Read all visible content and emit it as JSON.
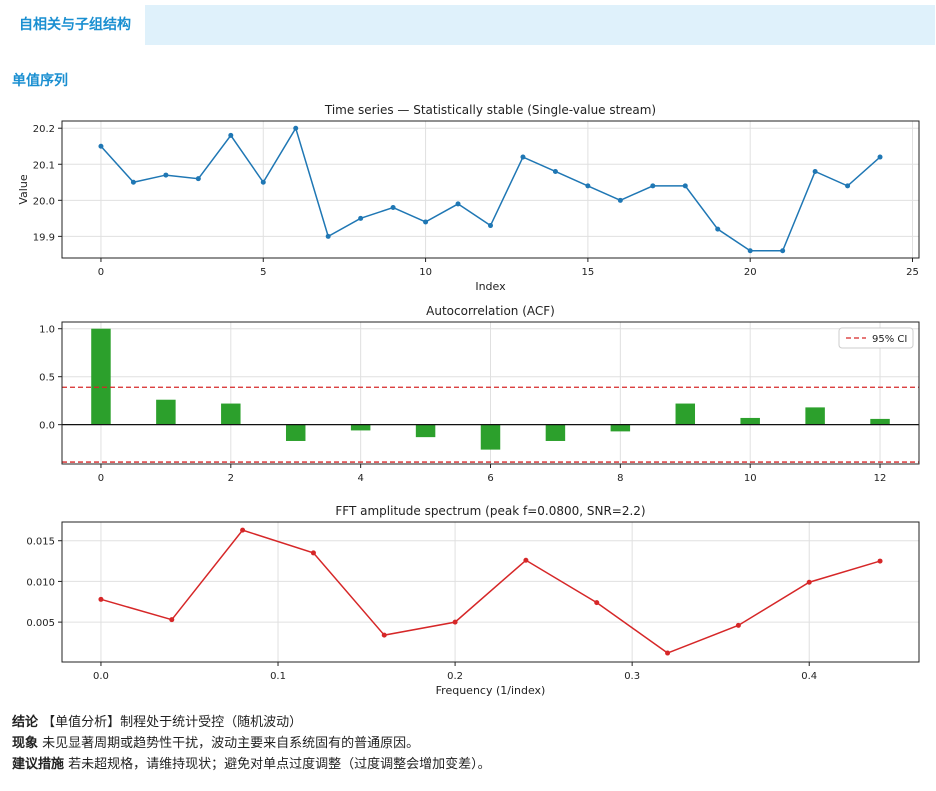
{
  "tab": {
    "label": "自相关与子组结构"
  },
  "section": {
    "title": "单值序列"
  },
  "colors": {
    "series": "#1f77b4",
    "acf_bar": "#2ca02c",
    "ci": "#d62728",
    "fft": "#d62728",
    "accent": "#1a8fd1"
  },
  "chart_data": [
    {
      "type": "line",
      "title": "Time series — Statistically stable (Single-value stream)",
      "xlabel": "Index",
      "ylabel": "Value",
      "xlim": [
        -1.2,
        25.2
      ],
      "ylim": [
        19.84,
        20.22
      ],
      "xticks": [
        0,
        5,
        10,
        15,
        20,
        25
      ],
      "yticks": [
        19.9,
        20.0,
        20.1,
        20.2
      ],
      "ytick_labels": [
        "19.9",
        "20.0",
        "20.1",
        "20.2"
      ],
      "grid": true,
      "x": [
        0,
        1,
        2,
        3,
        4,
        5,
        6,
        7,
        8,
        9,
        10,
        11,
        12,
        13,
        14,
        15,
        16,
        17,
        18,
        19,
        20,
        21,
        22,
        23,
        24
      ],
      "y": [
        20.15,
        20.05,
        20.07,
        20.06,
        20.18,
        20.05,
        20.2,
        19.9,
        19.95,
        19.98,
        19.94,
        19.99,
        19.93,
        20.12,
        20.08,
        20.04,
        20.0,
        20.04,
        20.04,
        19.92,
        19.86,
        19.86,
        20.08,
        20.04,
        20.12
      ]
    },
    {
      "type": "bar",
      "title": "Autocorrelation (ACF)",
      "xlim": [
        -0.6,
        12.6
      ],
      "ylim": [
        -0.41,
        1.07
      ],
      "xticks": [
        0,
        2,
        4,
        6,
        8,
        10,
        12
      ],
      "yticks": [
        0.0,
        0.5,
        1.0
      ],
      "ytick_labels": [
        "0.0",
        "0.5",
        "1.0"
      ],
      "grid": true,
      "lags": [
        0,
        1,
        2,
        3,
        4,
        5,
        6,
        7,
        8,
        9,
        10,
        11,
        12
      ],
      "values": [
        1.0,
        0.26,
        0.22,
        -0.17,
        -0.06,
        -0.13,
        -0.26,
        -0.17,
        -0.07,
        0.22,
        0.07,
        0.18,
        0.06
      ],
      "ci": 0.39,
      "legend": {
        "label": "95% CI",
        "position": "top-right"
      }
    },
    {
      "type": "line",
      "title": "FFT amplitude spectrum (peak f=0.0800, SNR=2.2)",
      "xlabel": "Frequency (1/index)",
      "xlim": [
        -0.022,
        0.462
      ],
      "ylim": [
        0.0001,
        0.0173
      ],
      "xticks": [
        0.0,
        0.1,
        0.2,
        0.3,
        0.4
      ],
      "xtick_labels": [
        "0.0",
        "0.1",
        "0.2",
        "0.3",
        "0.4"
      ],
      "yticks": [
        0.005,
        0.01,
        0.015
      ],
      "ytick_labels": [
        "0.005",
        "0.010",
        "0.015"
      ],
      "grid": true,
      "x": [
        0.0,
        0.04,
        0.08,
        0.12,
        0.16,
        0.2,
        0.24,
        0.28,
        0.32,
        0.36,
        0.4,
        0.44
      ],
      "y": [
        0.0078,
        0.0053,
        0.0163,
        0.0135,
        0.0034,
        0.005,
        0.0126,
        0.0074,
        0.0012,
        0.0046,
        0.0099,
        0.0125
      ]
    }
  ],
  "summary": {
    "conclusion_label": "结论",
    "conclusion_text": "【单值分析】制程处于统计受控（随机波动）",
    "phenomenon_label": "现象",
    "phenomenon_text": "未见显著周期或趋势性干扰，波动主要来自系统固有的普通原因。",
    "action_label": "建议措施",
    "action_text": "若未超规格，请维持现状；避免对单点过度调整（过度调整会增加变差）。"
  }
}
